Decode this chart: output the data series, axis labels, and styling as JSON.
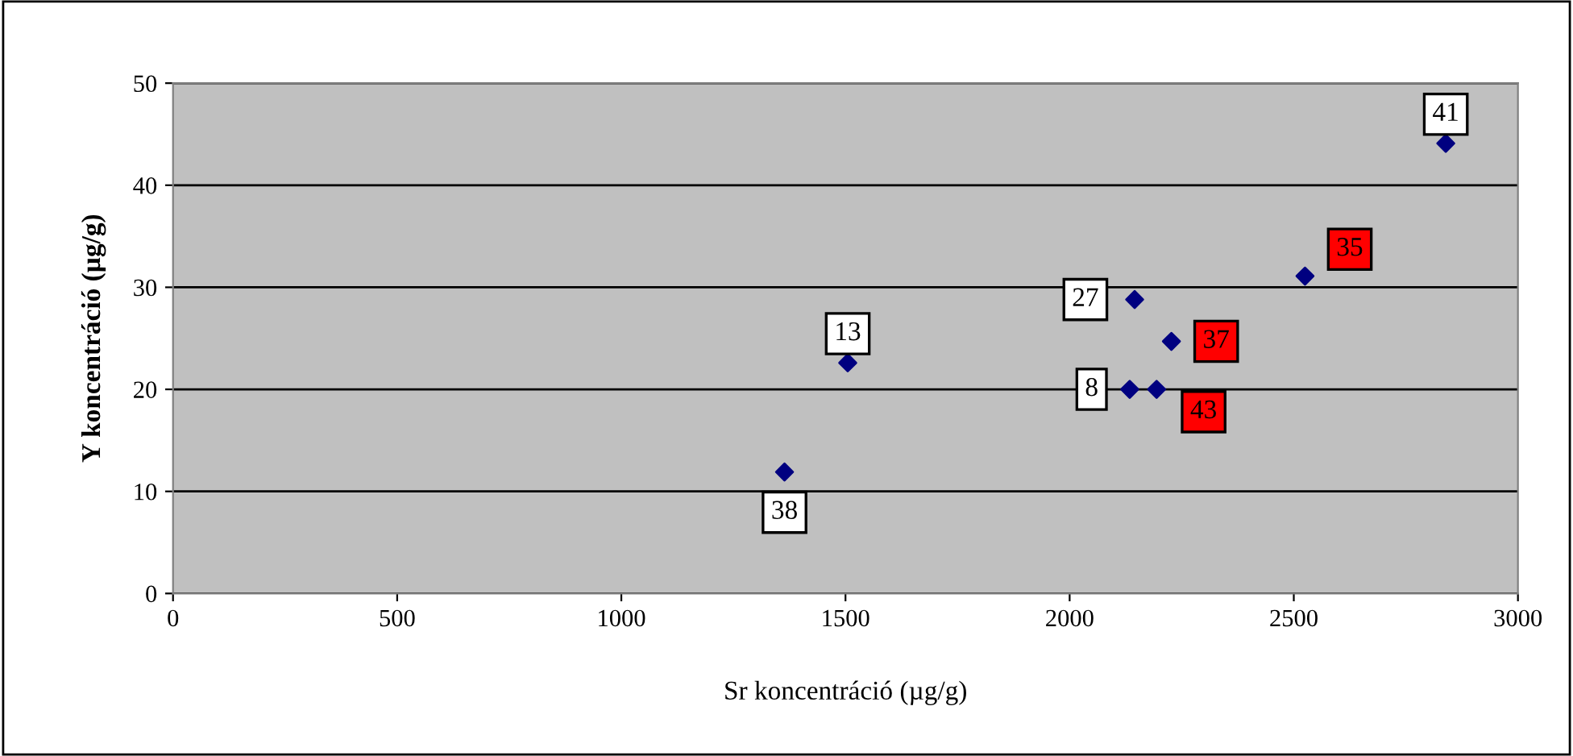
{
  "chart_data": {
    "type": "scatter",
    "xlabel": "Sr koncentráció (µg/g)",
    "ylabel": "Y koncentráció (µg/g)",
    "series": [
      {
        "color": "#000080",
        "x": [
          1505,
          1364,
          2839,
          2525,
          2145,
          2227,
          2134,
          2194
        ],
        "values": [
          22.6,
          11.9,
          44.1,
          31.1,
          28.8,
          24.7,
          20.0,
          20.0
        ]
      }
    ],
    "annotations": [
      {
        "text": "13",
        "x": 1505,
        "y": 22.6
      },
      {
        "text": "38",
        "x": 1364,
        "y": 11.9
      },
      {
        "text": "41",
        "x": 2839,
        "y": 44.1
      },
      {
        "text": "35",
        "x": 2525,
        "y": 31.1
      },
      {
        "text": "27",
        "x": 2145,
        "y": 28.8
      },
      {
        "text": "37",
        "x": 2227,
        "y": 24.7
      },
      {
        "text": "8",
        "x": 2134,
        "y": 20.0
      },
      {
        "text": "43",
        "x": 2194,
        "y": 20.0
      }
    ],
    "xlim": [
      0,
      3000
    ],
    "xticks": [
      0,
      500,
      1000,
      1500,
      2000,
      2500,
      3000
    ],
    "ylim": [
      0,
      50
    ],
    "yticks": [
      0,
      10,
      20,
      30,
      40,
      50
    ],
    "grid": "y",
    "marker": "diamond",
    "legend": false
  }
}
